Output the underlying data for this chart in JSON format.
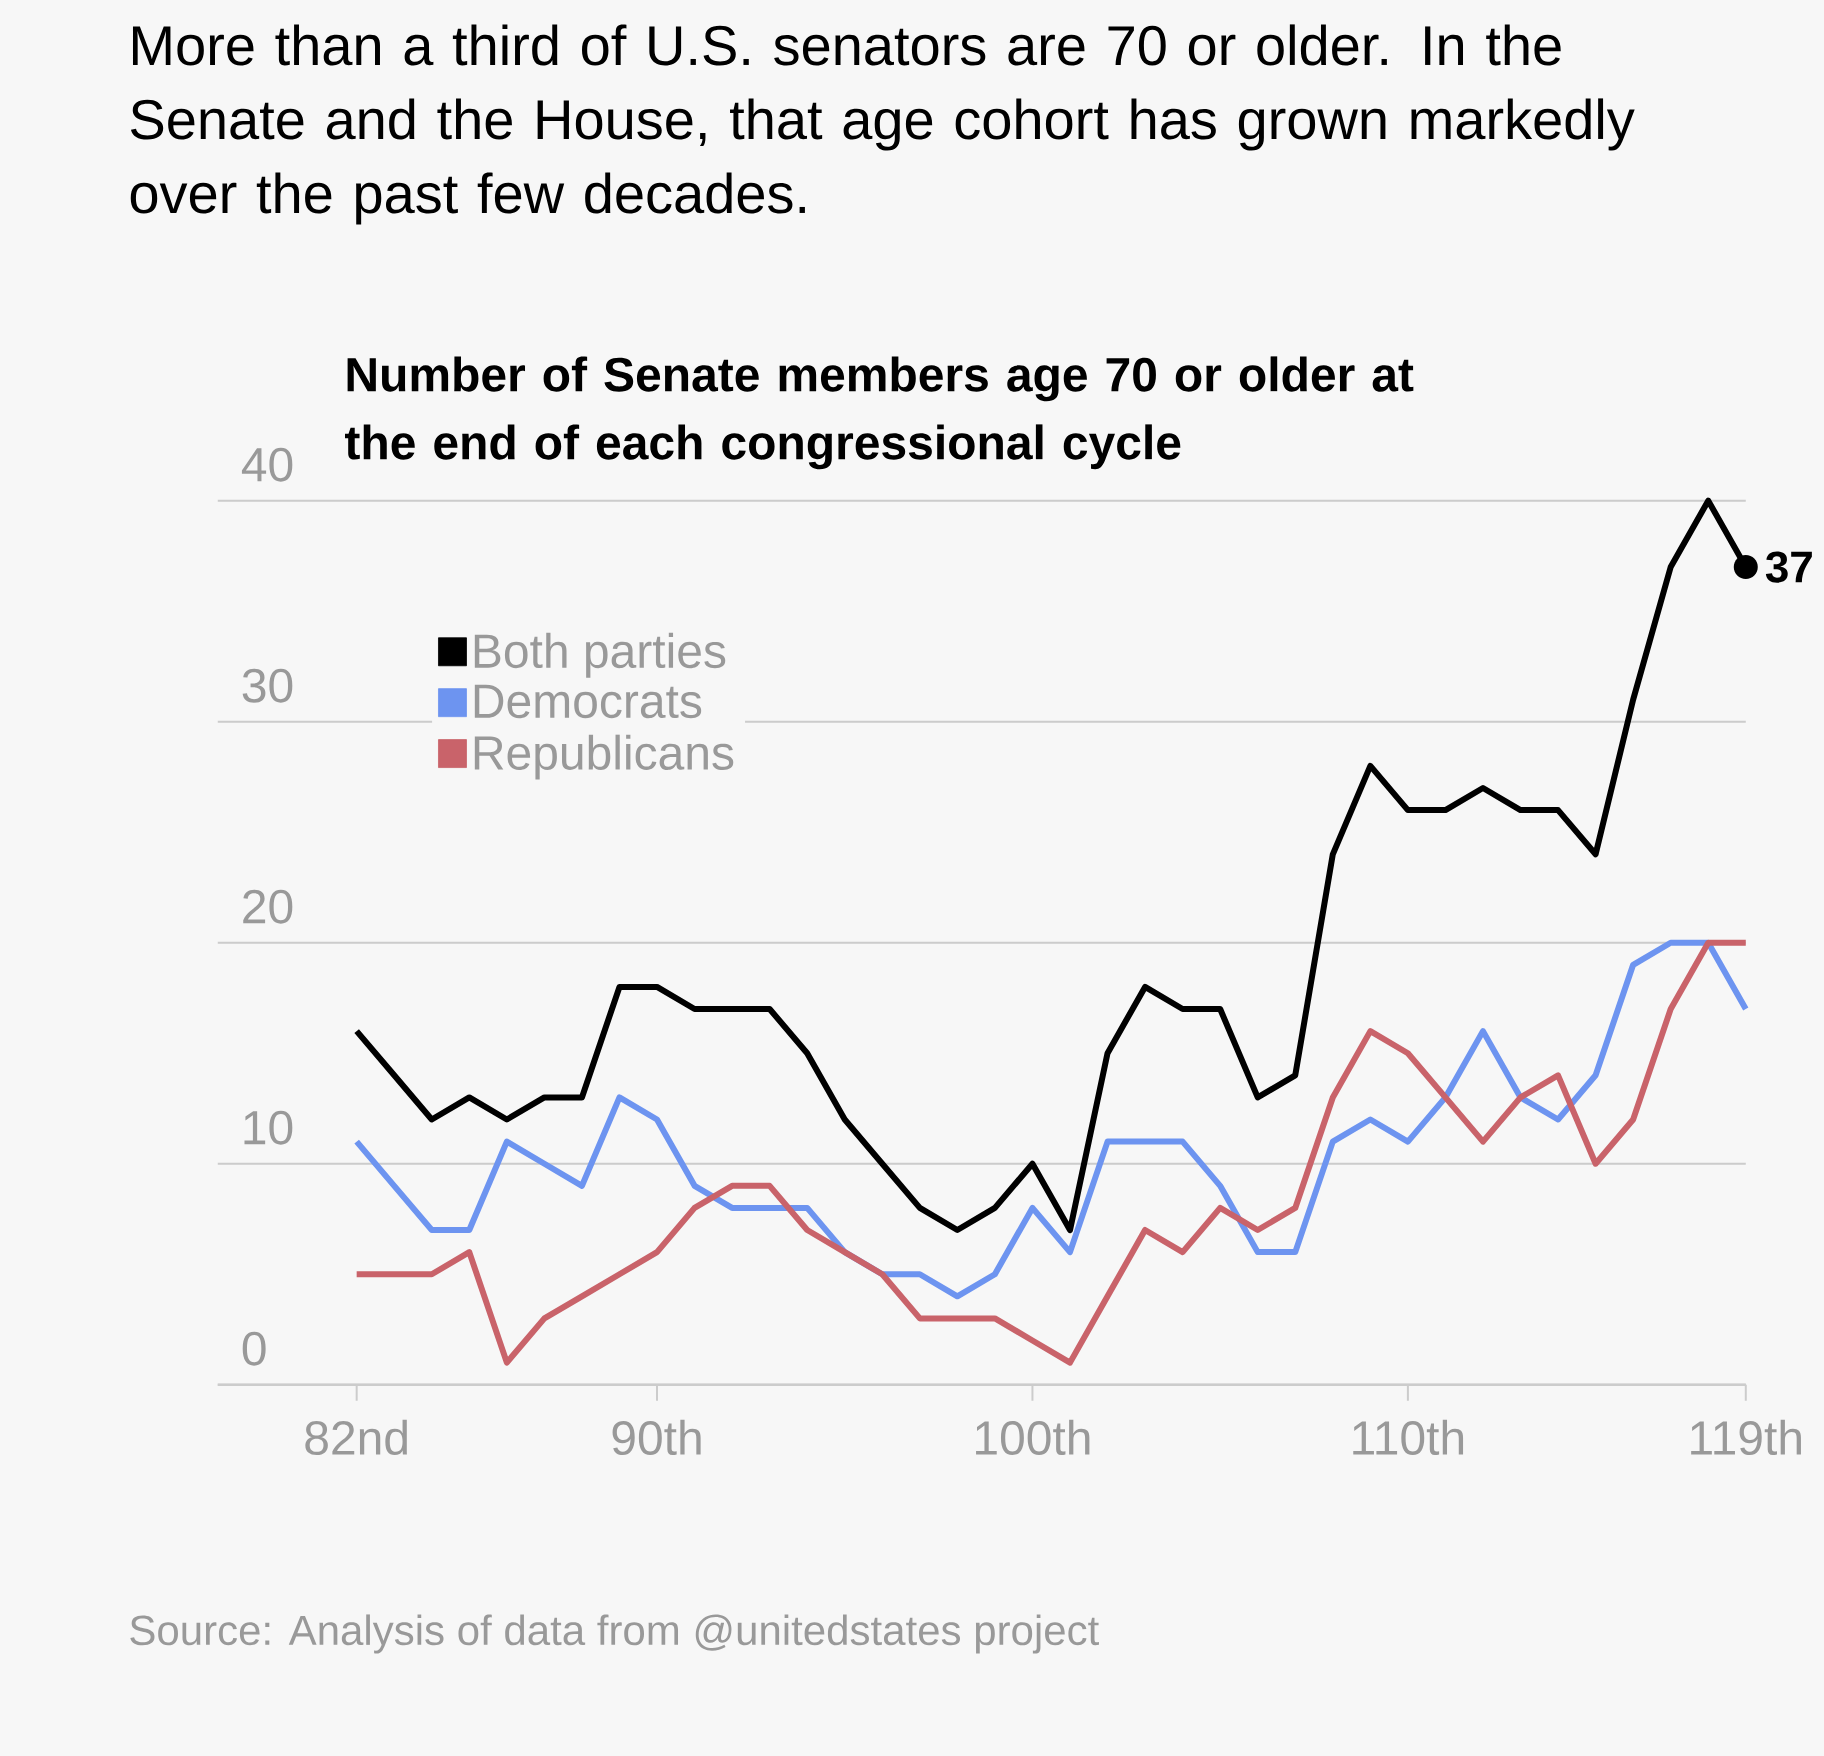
{
  "chart_data": {
    "type": "line",
    "title": "More than a third of U.S. senators are 70 or older. In the Senate and the House, that age cohort has grown markedly over the past few decades.",
    "subtitle": "Number of Senate members age 70 or older at the end of each congressional cycle",
    "x": [
      82,
      83,
      84,
      85,
      86,
      87,
      88,
      89,
      90,
      91,
      92,
      93,
      94,
      95,
      96,
      97,
      98,
      99,
      100,
      101,
      102,
      103,
      104,
      105,
      106,
      107,
      108,
      109,
      110,
      111,
      112,
      113,
      114,
      115,
      116,
      117,
      118,
      119
    ],
    "series": [
      {
        "name": "Both parties",
        "color": "#000000",
        "values": [
          16,
          14,
          12,
          13,
          12,
          13,
          13,
          18,
          18,
          17,
          17,
          17,
          15,
          12,
          10,
          8,
          7,
          8,
          10,
          7,
          15,
          18,
          17,
          17,
          13,
          14,
          24,
          28,
          26,
          26,
          27,
          26,
          26,
          24,
          31,
          37,
          40,
          37
        ]
      },
      {
        "name": "Democrats",
        "color": "#6d94f0",
        "values": [
          11,
          9,
          7,
          7,
          11,
          10,
          9,
          13,
          12,
          9,
          8,
          8,
          8,
          6,
          5,
          5,
          4,
          5,
          8,
          6,
          11,
          11,
          11,
          9,
          6,
          6,
          11,
          12,
          11,
          13,
          16,
          13,
          12,
          14,
          19,
          20,
          20,
          17
        ]
      },
      {
        "name": "Republicans",
        "color": "#c9636a",
        "values": [
          5,
          5,
          5,
          6,
          1,
          3,
          4,
          5,
          6,
          8,
          9,
          9,
          7,
          6,
          5,
          3,
          3,
          3,
          2,
          1,
          4,
          7,
          6,
          8,
          7,
          8,
          13,
          16,
          15,
          13,
          11,
          13,
          14,
          10,
          12,
          17,
          20,
          20
        ]
      }
    ],
    "xlim": [
      78.3,
      119
    ],
    "xticks": [
      {
        "value": 82,
        "label": "82nd"
      },
      {
        "value": 90,
        "label": "90th"
      },
      {
        "value": 100,
        "label": "100th"
      },
      {
        "value": 110,
        "label": "110th"
      },
      {
        "value": 119,
        "label": "119th"
      }
    ],
    "ylim": [
      0,
      40
    ],
    "yticks": [
      0,
      10,
      20,
      30,
      40
    ],
    "grid": "y",
    "legend": "top left",
    "marker": "none",
    "line_style": "solid",
    "annotations": [
      {
        "text": "37",
        "x": 119,
        "y": 37
      },
      "Source: Analysis of data from @unitedstates project"
    ]
  }
}
